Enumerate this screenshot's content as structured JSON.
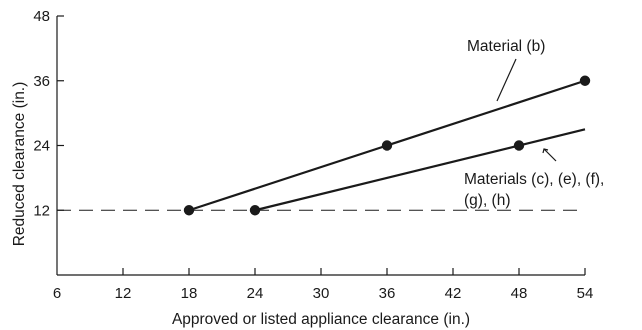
{
  "chart_data": {
    "type": "line",
    "title": "",
    "xlabel": "Approved or listed appliance clearance (in.)",
    "ylabel": "Reduced clearance (in.)",
    "xlim": [
      6,
      54
    ],
    "ylim": [
      0,
      48
    ],
    "x_ticks": [
      6,
      12,
      18,
      24,
      30,
      36,
      42,
      48,
      54
    ],
    "y_ticks": [
      12,
      24,
      36,
      48
    ],
    "grid": false,
    "series": [
      {
        "name": "Material (b)",
        "line": [
          [
            18,
            12
          ],
          [
            54,
            36
          ]
        ],
        "points": [
          [
            18,
            12
          ],
          [
            36,
            24
          ],
          [
            54,
            36
          ]
        ]
      },
      {
        "name": "Materials (c), (e), (f), (g), (h)",
        "line": [
          [
            24,
            12
          ],
          [
            54,
            27
          ]
        ],
        "points": [
          [
            24,
            12
          ],
          [
            48,
            24
          ]
        ]
      }
    ],
    "reference_line": {
      "y": 12,
      "style": "dashed"
    },
    "annotations": {
      "material_b": "Material (b)",
      "materials_c_line1": "Materials (c), (e), (f),",
      "materials_c_line2": "(g), (h)"
    }
  }
}
